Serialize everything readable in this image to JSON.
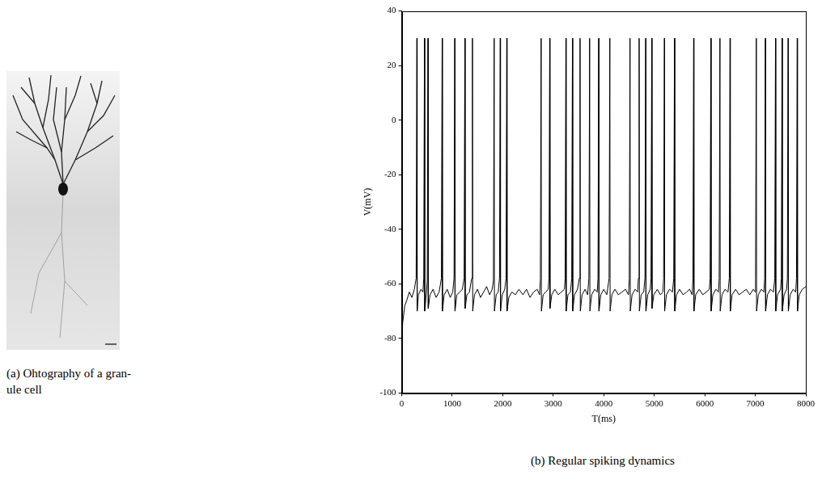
{
  "chart_data": {
    "type": "line",
    "caption": "(b) Regular spiking dynamics",
    "xlabel": "T(ms)",
    "ylabel": "V(mV)",
    "color": "#000000",
    "grid": false,
    "xlim": [
      0,
      8000
    ],
    "xticks": [
      0,
      1000,
      2000,
      3000,
      4000,
      5000,
      6000,
      7000,
      8000
    ],
    "ylim": [
      -100,
      40
    ],
    "yticks": [
      -100,
      -80,
      -60,
      -40,
      -20,
      0,
      20,
      40
    ],
    "x": [
      0,
      20,
      60,
      100,
      150,
      200,
      250,
      285,
      300,
      305,
      330,
      380,
      420,
      435,
      450,
      455,
      480,
      505,
      520,
      525,
      560,
      620,
      680,
      740,
      785,
      800,
      805,
      840,
      900,
      960,
      1010,
      1035,
      1050,
      1055,
      1090,
      1150,
      1200,
      1235,
      1250,
      1255,
      1290,
      1340,
      1385,
      1400,
      1405,
      1440,
      1500,
      1560,
      1620,
      1680,
      1740,
      1790,
      1815,
      1830,
      1835,
      1870,
      1910,
      1935,
      1950,
      1955,
      1990,
      2040,
      2065,
      2080,
      2085,
      2120,
      2180,
      2250,
      2320,
      2400,
      2470,
      2540,
      2610,
      2680,
      2730,
      2745,
      2760,
      2765,
      2800,
      2850,
      2900,
      2915,
      2930,
      2935,
      2970,
      3030,
      3100,
      3160,
      3220,
      3235,
      3250,
      3255,
      3290,
      3340,
      3365,
      3380,
      3385,
      3420,
      3480,
      3515,
      3530,
      3535,
      3570,
      3630,
      3680,
      3705,
      3720,
      3725,
      3760,
      3820,
      3870,
      3885,
      3900,
      3905,
      3940,
      4000,
      4060,
      4105,
      4120,
      4125,
      4160,
      4220,
      4290,
      4360,
      4430,
      4490,
      4505,
      4520,
      4525,
      4560,
      4620,
      4670,
      4685,
      4700,
      4705,
      4740,
      4790,
      4815,
      4830,
      4835,
      4870,
      4920,
      4935,
      4950,
      4955,
      4990,
      5060,
      5120,
      5170,
      5185,
      5200,
      5205,
      5240,
      5300,
      5360,
      5385,
      5400,
      5405,
      5440,
      5500,
      5570,
      5640,
      5700,
      5750,
      5765,
      5780,
      5785,
      5820,
      5890,
      5960,
      6030,
      6090,
      6105,
      6120,
      6125,
      6160,
      6220,
      6270,
      6285,
      6300,
      6305,
      6340,
      6400,
      6460,
      6485,
      6500,
      6505,
      6540,
      6610,
      6680,
      6750,
      6820,
      6890,
      6960,
      7000,
      7005,
      7020,
      7025,
      7060,
      7120,
      7170,
      7185,
      7200,
      7205,
      7240,
      7300,
      7360,
      7385,
      7400,
      7405,
      7440,
      7500,
      7515,
      7530,
      7535,
      7570,
      7620,
      7635,
      7650,
      7655,
      7690,
      7750,
      7800,
      7815,
      7830,
      7835,
      7870,
      7930,
      8000
    ],
    "values": [
      -80,
      -74,
      -68,
      -66,
      -63,
      -65,
      -62,
      -58,
      30,
      -70,
      -64,
      -62,
      -63,
      -58,
      30,
      -70,
      -65,
      -59,
      30,
      -69,
      -64,
      -62,
      -65,
      -63,
      -58,
      30,
      -70,
      -64,
      -62,
      -65,
      -63,
      -58,
      30,
      -70,
      -64,
      -63,
      -62,
      -58,
      30,
      -69,
      -64,
      -63,
      -58,
      30,
      -70,
      -64,
      -62,
      -65,
      -63,
      -61,
      -64,
      -62,
      -59,
      30,
      -70,
      -64,
      -63,
      -58,
      30,
      -70,
      -64,
      -62,
      -58,
      30,
      -70,
      -65,
      -63,
      -64,
      -62,
      -64,
      -62,
      -65,
      -63,
      -62,
      -64,
      -58,
      30,
      -70,
      -64,
      -63,
      -62,
      -58,
      30,
      -69,
      -64,
      -62,
      -64,
      -63,
      -62,
      -58,
      30,
      -70,
      -64,
      -63,
      -58,
      30,
      -70,
      -64,
      -62,
      -58,
      30,
      -70,
      -64,
      -62,
      -64,
      -58,
      30,
      -70,
      -64,
      -62,
      -63,
      -58,
      30,
      -70,
      -64,
      -62,
      -64,
      -58,
      30,
      -70,
      -64,
      -62,
      -64,
      -63,
      -62,
      -64,
      -58,
      30,
      -70,
      -64,
      -62,
      -63,
      -58,
      30,
      -70,
      -64,
      -63,
      -58,
      30,
      -70,
      -64,
      -62,
      -58,
      30,
      -69,
      -64,
      -62,
      -64,
      -63,
      -58,
      30,
      -70,
      -64,
      -62,
      -63,
      -58,
      30,
      -70,
      -64,
      -62,
      -64,
      -63,
      -62,
      -64,
      -58,
      30,
      -70,
      -64,
      -62,
      -64,
      -63,
      -62,
      -58,
      30,
      -70,
      -64,
      -62,
      -63,
      -58,
      30,
      -70,
      -64,
      -62,
      -63,
      -58,
      30,
      -70,
      -64,
      -62,
      -64,
      -63,
      -62,
      -64,
      -62,
      -63,
      -58,
      30,
      -70,
      -64,
      -62,
      -63,
      -58,
      30,
      -70,
      -64,
      -62,
      -63,
      -58,
      30,
      -70,
      -64,
      -62,
      -58,
      30,
      -70,
      -64,
      -62,
      -58,
      30,
      -70,
      -64,
      -62,
      -63,
      -58,
      30,
      -70,
      -64,
      -62,
      -61
    ]
  },
  "photo": {
    "caption": [
      "(a) Ohtography of a gran-",
      "ule cell"
    ]
  }
}
